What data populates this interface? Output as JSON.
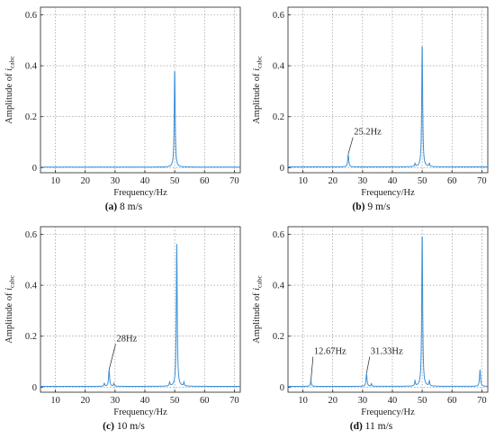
{
  "chart_data": [
    {
      "type": "line",
      "panel_id": "a",
      "caption_id": "(a)",
      "caption_text": " 8 m/s",
      "xlabel": "Frequency/Hz",
      "ylabel": "Amplitude of i_cabc",
      "xlim": [
        5,
        72
      ],
      "ylim": [
        -0.02,
        0.63
      ],
      "xticks": [
        10,
        20,
        30,
        40,
        50,
        60,
        70
      ],
      "yticks": [
        0,
        0.2,
        0.4,
        0.6
      ],
      "ytick_labels": [
        "0",
        "0.2",
        "0.4",
        "0.6"
      ],
      "grid": true,
      "color": "#3a8fd8",
      "baseline": 0.002,
      "peaks": [
        {
          "x": 50,
          "y": 0.39,
          "width": 0.55
        }
      ],
      "small_peaks": [],
      "annotations": []
    },
    {
      "type": "line",
      "panel_id": "b",
      "caption_id": "(b)",
      "caption_text": " 9 m/s",
      "xlabel": "Frequency/Hz",
      "ylabel": "Amplitude of i_cabc",
      "xlim": [
        5,
        72
      ],
      "ylim": [
        -0.02,
        0.63
      ],
      "xticks": [
        10,
        20,
        30,
        40,
        50,
        60,
        70
      ],
      "yticks": [
        0,
        0.2,
        0.4,
        0.6
      ],
      "ytick_labels": [
        "0",
        "0.2",
        "0.4",
        "0.6"
      ],
      "grid": true,
      "color": "#3a8fd8",
      "baseline": 0.003,
      "peaks": [
        {
          "x": 25.2,
          "y": 0.05,
          "width": 0.6
        },
        {
          "x": 50,
          "y": 0.49,
          "width": 0.55
        }
      ],
      "small_peaks": [
        {
          "x": 47.6,
          "y": 0.012
        },
        {
          "x": 52.4,
          "y": 0.012
        }
      ],
      "annotations": [
        {
          "text": "25.2Hz",
          "x": 25.2,
          "y": 0.05,
          "lx": 26.8,
          "ly": 0.13
        }
      ]
    },
    {
      "type": "line",
      "panel_id": "c",
      "caption_id": "(c)",
      "caption_text": " 10 m/s",
      "xlabel": "Frequency/Hz",
      "ylabel": "Amplitude of i_cabc",
      "xlim": [
        5,
        72
      ],
      "ylim": [
        -0.02,
        0.63
      ],
      "xticks": [
        10,
        20,
        30,
        40,
        50,
        60,
        70
      ],
      "yticks": [
        0,
        0.2,
        0.4,
        0.6
      ],
      "ytick_labels": [
        "0",
        "0.2",
        "0.4",
        "0.6"
      ],
      "grid": true,
      "color": "#3a8fd8",
      "baseline": 0.003,
      "peaks": [
        {
          "x": 28,
          "y": 0.065,
          "width": 0.6
        },
        {
          "x": 50.7,
          "y": 0.56,
          "width": 0.55
        }
      ],
      "small_peaks": [
        {
          "x": 26.4,
          "y": 0.012
        },
        {
          "x": 29.6,
          "y": 0.012
        },
        {
          "x": 48.3,
          "y": 0.015
        },
        {
          "x": 53.1,
          "y": 0.015
        }
      ],
      "annotations": [
        {
          "text": "28Hz",
          "x": 28,
          "y": 0.065,
          "lx": 30.2,
          "ly": 0.18
        }
      ]
    },
    {
      "type": "line",
      "panel_id": "d",
      "caption_id": "(d)",
      "caption_text": " 11 m/s",
      "xlabel": "Frequency/Hz",
      "ylabel": "Amplitude of i_cabc",
      "xlim": [
        5,
        72
      ],
      "ylim": [
        -0.02,
        0.63
      ],
      "xticks": [
        10,
        20,
        30,
        40,
        50,
        60,
        70
      ],
      "yticks": [
        0,
        0.2,
        0.4,
        0.6
      ],
      "ytick_labels": [
        "0",
        "0.2",
        "0.4",
        "0.6"
      ],
      "grid": true,
      "color": "#3a8fd8",
      "baseline": 0.003,
      "peaks": [
        {
          "x": 12.67,
          "y": 0.02,
          "width": 0.6
        },
        {
          "x": 31.33,
          "y": 0.05,
          "width": 0.6
        },
        {
          "x": 50,
          "y": 0.61,
          "width": 0.55
        },
        {
          "x": 69.4,
          "y": 0.065,
          "width": 0.6
        }
      ],
      "small_peaks": [
        {
          "x": 47.6,
          "y": 0.02
        },
        {
          "x": 52.4,
          "y": 0.02
        },
        {
          "x": 33.0,
          "y": 0.01
        }
      ],
      "annotations": [
        {
          "text": "12.67Hz",
          "x": 12.67,
          "y": 0.02,
          "lx": 13.4,
          "ly": 0.13
        },
        {
          "text": "31.33Hz",
          "x": 31.33,
          "y": 0.05,
          "lx": 32.4,
          "ly": 0.13
        }
      ]
    }
  ]
}
